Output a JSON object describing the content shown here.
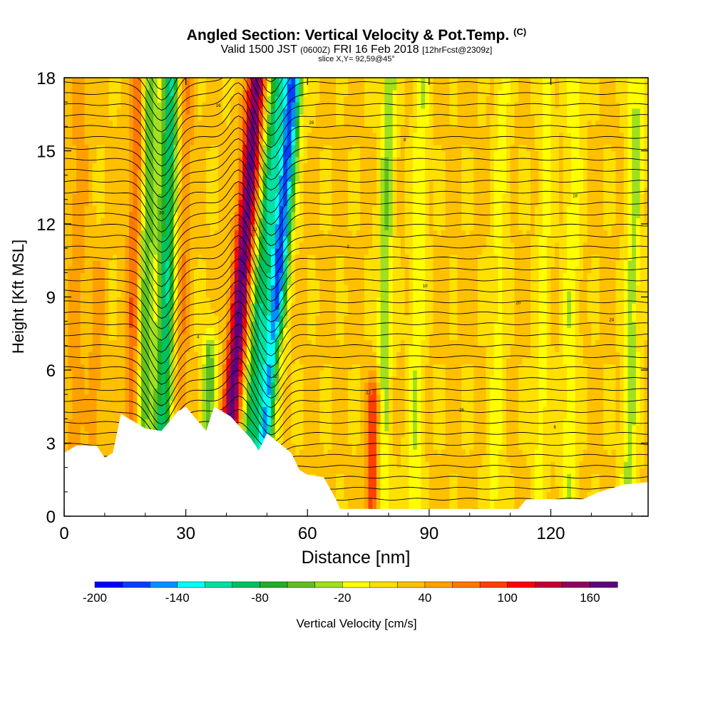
{
  "title": "Angled Section: Vertical Velocity & Pot.Temp.",
  "title_unit": "(C)",
  "subtitle_a": "Valid 1500 JST",
  "subtitle_b": "(0600Z)",
  "subtitle_c": "FRI 16 Feb 2018",
  "subtitle_d": "[12hrFcst@2309z]",
  "slice_text": "slice X,Y= 92,59@45°",
  "chart_data": {
    "type": "heatmap",
    "xlabel": "Distance [nm]",
    "ylabel": "Height [Kft MSL]",
    "xlim": [
      0,
      144
    ],
    "ylim": [
      0,
      18
    ],
    "xticks": [
      0,
      30,
      60,
      90,
      120
    ],
    "yticks": [
      0,
      3,
      6,
      9,
      12,
      15,
      18
    ],
    "colorbar": {
      "label": "Vertical Velocity [cm/s]",
      "tick_values": [
        -200,
        -140,
        -80,
        -20,
        40,
        100,
        160
      ],
      "tick_labels": [
        "-200",
        "-140",
        "-80",
        "-20",
        "40",
        "100",
        "160"
      ],
      "min": -200,
      "max": 180,
      "step": 20,
      "colors": [
        "#0000ff",
        "#0040ff",
        "#0090ff",
        "#00ffff",
        "#00e0a0",
        "#00c060",
        "#20b020",
        "#60c020",
        "#a0e020",
        "#ffff00",
        "#ffe000",
        "#ffc000",
        "#ffa000",
        "#ff7800",
        "#ff4000",
        "#ff0000",
        "#c00030",
        "#900060",
        "#600080"
      ]
    },
    "vertical_velocity_features": [
      {
        "x": 3,
        "z_top": 18,
        "w": 35
      },
      {
        "x": 8,
        "z_top": 10,
        "w": 30
      },
      {
        "x": 17,
        "z_top": 18,
        "w": 60
      },
      {
        "x": 20,
        "z_top": 18,
        "w": -80
      },
      {
        "x": 25,
        "z_top": 18,
        "w": -120
      },
      {
        "x": 29,
        "z_top": 18,
        "w": 40
      },
      {
        "x": 36,
        "z_top": 7,
        "w": -70
      },
      {
        "x": 43,
        "z_top": 18,
        "w": 150
      },
      {
        "x": 48,
        "z_top": 18,
        "w": -110
      },
      {
        "x": 52,
        "z_top": 18,
        "w": -190
      },
      {
        "x": 53,
        "z_top": 7,
        "w": 60
      },
      {
        "x": 77,
        "z_top": 5,
        "w": 90
      },
      {
        "x": 79,
        "z_top": 18,
        "w": -60
      },
      {
        "x": 87,
        "z_top": 18,
        "w": -40
      },
      {
        "x": 107,
        "z_top": 18,
        "w": -30
      },
      {
        "x": 118,
        "z_top": 18,
        "w": -30
      },
      {
        "x": 125,
        "z_top": 18,
        "w": -40
      },
      {
        "x": 140,
        "z_top": 18,
        "w": -50
      }
    ],
    "terrain": [
      {
        "x": 0,
        "z": 2.6
      },
      {
        "x": 3,
        "z": 2.9
      },
      {
        "x": 8,
        "z": 2.9
      },
      {
        "x": 10,
        "z": 2.4
      },
      {
        "x": 12,
        "z": 2.6
      },
      {
        "x": 14,
        "z": 4.2
      },
      {
        "x": 20,
        "z": 3.6
      },
      {
        "x": 24,
        "z": 3.5
      },
      {
        "x": 28,
        "z": 4.3
      },
      {
        "x": 30,
        "z": 4.5
      },
      {
        "x": 33,
        "z": 3.9
      },
      {
        "x": 35,
        "z": 3.5
      },
      {
        "x": 37,
        "z": 4.5
      },
      {
        "x": 41,
        "z": 4.1
      },
      {
        "x": 46,
        "z": 3.2
      },
      {
        "x": 48,
        "z": 2.7
      },
      {
        "x": 50,
        "z": 3.4
      },
      {
        "x": 56,
        "z": 2.6
      },
      {
        "x": 58,
        "z": 1.9
      },
      {
        "x": 60,
        "z": 1.7
      },
      {
        "x": 64,
        "z": 1.6
      },
      {
        "x": 67,
        "z": 0.7
      },
      {
        "x": 68,
        "z": 0.3
      },
      {
        "x": 112,
        "z": 0.3
      },
      {
        "x": 114,
        "z": 0.7
      },
      {
        "x": 128,
        "z": 0.7
      },
      {
        "x": 132,
        "z": 1.0
      },
      {
        "x": 138,
        "z": 1.3
      },
      {
        "x": 144,
        "z": 1.4
      }
    ],
    "isentrope_labels": [
      "14",
      "12",
      "10",
      "18",
      "16",
      "22",
      "20",
      "30",
      "28",
      "26",
      "24",
      "32",
      "8",
      "6",
      "4",
      "2"
    ]
  }
}
